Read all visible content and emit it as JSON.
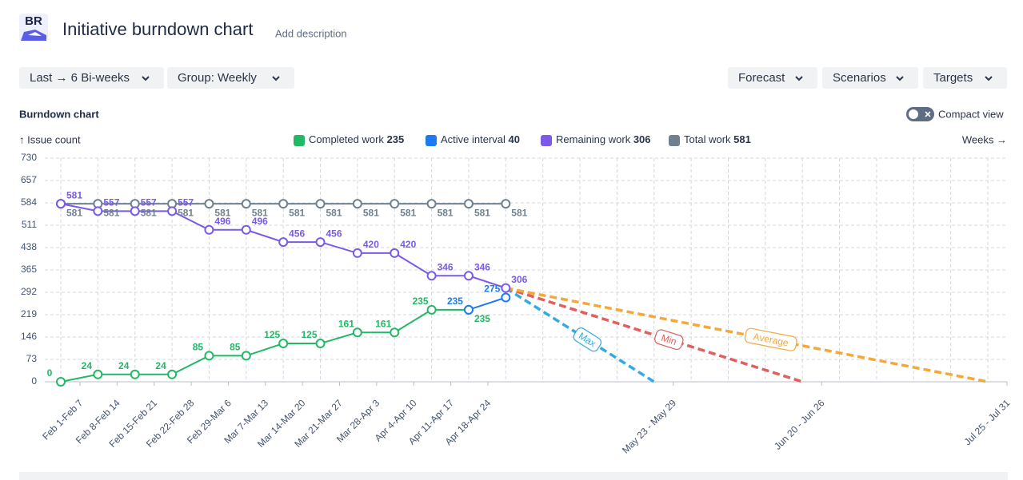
{
  "header": {
    "logo": "BR",
    "title": "Initiative burndown chart",
    "description": "Add description"
  },
  "toolbar": {
    "left": [
      "Last → 6 Bi-weeks",
      "Group: Weekly"
    ],
    "right": [
      "Forecast",
      "Scenarios",
      "Targets"
    ]
  },
  "section_title": "Burndown chart",
  "compact_view": "Compact view",
  "chart_data": {
    "type": "line",
    "y_label": "↑ Issue count",
    "x_label": "Weeks →",
    "categories": [
      "Feb 1-Feb 7",
      "Feb 8-Feb 14",
      "Feb 15-Feb 21",
      "Feb 22-Feb 28",
      "Feb 29-Mar 6",
      "Mar 7-Mar 13",
      "Mar 14-Mar 20",
      "Mar 21-Mar 27",
      "Mar 28-Apr 3",
      "Apr 4-Apr 10",
      "Apr 11-Apr 17",
      "Apr 18-Apr 24",
      null,
      null,
      null,
      null,
      "May 23 - May 29",
      null,
      null,
      null,
      "Jun 20 - Jun 26",
      null,
      null,
      null,
      null,
      "Jul 25 - Jul 31"
    ],
    "ylim": [
      0,
      730
    ],
    "yticks": [
      0,
      73,
      146,
      219,
      292,
      365,
      438,
      511,
      584,
      657,
      730
    ],
    "grid": true,
    "series": [
      {
        "name": "Completed work",
        "legend_value": 235,
        "color": "#22b866",
        "values": [
          0,
          24,
          24,
          24,
          85,
          85,
          125,
          125,
          161,
          161,
          235,
          235,
          null,
          null,
          null,
          null,
          null,
          null,
          null,
          null,
          null,
          null,
          null,
          null,
          null,
          null
        ]
      },
      {
        "name": "Active interval",
        "legend_value": 40,
        "color": "#1d7af0",
        "values": [
          null,
          null,
          null,
          null,
          null,
          null,
          null,
          null,
          null,
          null,
          null,
          235,
          275,
          null,
          null,
          null,
          null,
          null,
          null,
          null,
          null,
          null,
          null,
          null,
          null,
          null
        ]
      },
      {
        "name": "Remaining work",
        "legend_value": 306,
        "color": "#7a5ae6",
        "values": [
          581,
          557,
          557,
          557,
          496,
          496,
          456,
          456,
          420,
          420,
          346,
          346,
          306,
          null,
          null,
          null,
          null,
          null,
          null,
          null,
          null,
          null,
          null,
          null,
          null,
          null
        ]
      },
      {
        "name": "Total work",
        "legend_value": 581,
        "color": "#6f8190",
        "values": [
          581,
          581,
          581,
          581,
          581,
          581,
          581,
          581,
          581,
          581,
          581,
          581,
          581,
          null,
          null,
          null,
          null,
          null,
          null,
          null,
          null,
          null,
          null,
          null,
          null,
          null
        ]
      }
    ],
    "forecasts": [
      {
        "name": "Max",
        "color": "#33abe0",
        "dashed": true,
        "values": [
          null,
          null,
          null,
          null,
          null,
          null,
          null,
          null,
          null,
          null,
          null,
          null,
          306,
          null,
          null,
          null,
          0,
          null,
          null,
          null,
          null,
          null,
          null,
          null,
          null,
          null
        ]
      },
      {
        "name": "Min",
        "color": "#e06060",
        "dashed": true,
        "values": [
          null,
          null,
          null,
          null,
          null,
          null,
          null,
          null,
          null,
          null,
          null,
          null,
          306,
          null,
          null,
          null,
          null,
          null,
          null,
          null,
          0,
          null,
          null,
          null,
          null,
          null
        ]
      },
      {
        "name": "Average",
        "color": "#f3a93a",
        "dashed": true,
        "values": [
          null,
          null,
          null,
          null,
          null,
          null,
          null,
          null,
          null,
          null,
          null,
          null,
          306,
          null,
          null,
          null,
          null,
          null,
          null,
          null,
          null,
          null,
          null,
          null,
          null,
          0
        ]
      }
    ]
  }
}
